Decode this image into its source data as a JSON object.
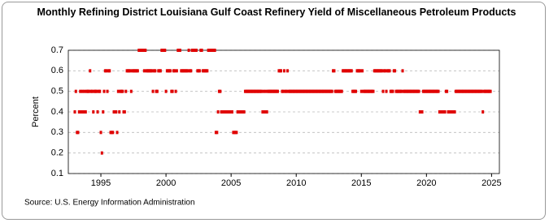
{
  "chart_data": {
    "type": "scatter",
    "title": "Monthly Refining District Louisiana Gulf Coast Refinery Yield of Miscellaneous Petroleum Products",
    "y_label": "Percent",
    "source": "Source: U.S. Energy Information Administration",
    "xlim": [
      1992.5,
      2025.6
    ],
    "xticks": [
      1995,
      2000,
      2005,
      2010,
      2015,
      2020,
      2025
    ],
    "ylim": [
      0.1,
      0.7
    ],
    "yticks": [
      0.1,
      0.2,
      0.3,
      0.4,
      0.5,
      0.6,
      0.7
    ],
    "grid": true,
    "color": "#e00000",
    "x": [
      1993,
      1993.08,
      1993.17,
      1993.25,
      1993.33,
      1993.42,
      1993.5,
      1993.58,
      1993.67,
      1993.75,
      1993.83,
      1993.92,
      1994,
      1994.08,
      1994.17,
      1994.25,
      1994.33,
      1994.42,
      1994.5,
      1994.58,
      1994.67,
      1994.75,
      1994.83,
      1994.92,
      1995,
      1995.08,
      1995.17,
      1995.25,
      1995.33,
      1995.42,
      1995.5,
      1995.58,
      1995.67,
      1995.75,
      1995.83,
      1995.92,
      1996,
      1996.08,
      1996.17,
      1996.25,
      1996.33,
      1996.42,
      1996.5,
      1996.58,
      1996.67,
      1996.75,
      1996.83,
      1996.92,
      1997,
      1997.08,
      1997.17,
      1997.25,
      1997.33,
      1997.42,
      1997.5,
      1997.58,
      1997.67,
      1997.75,
      1997.83,
      1997.92,
      1998,
      1998.08,
      1998.17,
      1998.25,
      1998.33,
      1998.42,
      1998.5,
      1998.58,
      1998.67,
      1998.75,
      1998.83,
      1998.92,
      1999,
      1999.08,
      1999.17,
      1999.25,
      1999.33,
      1999.42,
      1999.5,
      1999.58,
      1999.67,
      1999.75,
      1999.83,
      1999.92,
      2000,
      2000.08,
      2000.17,
      2000.25,
      2000.33,
      2000.42,
      2000.5,
      2000.58,
      2000.67,
      2000.75,
      2000.83,
      2000.92,
      2001,
      2001.08,
      2001.17,
      2001.25,
      2001.33,
      2001.42,
      2001.5,
      2001.58,
      2001.67,
      2001.75,
      2001.83,
      2001.92,
      2002,
      2002.08,
      2002.17,
      2002.25,
      2002.33,
      2002.42,
      2002.5,
      2002.58,
      2002.67,
      2002.75,
      2002.83,
      2002.92,
      2003,
      2003.08,
      2003.17,
      2003.25,
      2003.33,
      2003.42,
      2003.5,
      2003.58,
      2003.67,
      2003.75,
      2003.83,
      2003.92,
      2004,
      2004.08,
      2004.17,
      2004.25,
      2004.33,
      2004.42,
      2004.5,
      2004.58,
      2004.67,
      2004.75,
      2004.83,
      2004.92,
      2005,
      2005.08,
      2005.17,
      2005.25,
      2005.33,
      2005.42,
      2005.5,
      2005.58,
      2005.67,
      2005.75,
      2005.83,
      2005.92,
      2006,
      2006.08,
      2006.17,
      2006.25,
      2006.33,
      2006.42,
      2006.5,
      2006.58,
      2006.67,
      2006.75,
      2006.83,
      2006.92,
      2007,
      2007.08,
      2007.17,
      2007.25,
      2007.33,
      2007.42,
      2007.5,
      2007.58,
      2007.67,
      2007.75,
      2007.83,
      2007.92,
      2008,
      2008.08,
      2008.17,
      2008.25,
      2008.33,
      2008.42,
      2008.5,
      2008.58,
      2008.67,
      2008.75,
      2008.83,
      2008.92,
      2009,
      2009.08,
      2009.17,
      2009.25,
      2009.33,
      2009.42,
      2009.5,
      2009.58,
      2009.67,
      2009.75,
      2009.83,
      2009.92,
      2010,
      2010.08,
      2010.17,
      2010.25,
      2010.33,
      2010.42,
      2010.5,
      2010.58,
      2010.67,
      2010.75,
      2010.83,
      2010.92,
      2011,
      2011.08,
      2011.17,
      2011.25,
      2011.33,
      2011.42,
      2011.5,
      2011.58,
      2011.67,
      2011.75,
      2011.83,
      2011.92,
      2012,
      2012.08,
      2012.17,
      2012.25,
      2012.33,
      2012.42,
      2012.5,
      2012.58,
      2012.67,
      2012.75,
      2012.83,
      2012.92,
      2013,
      2013.08,
      2013.17,
      2013.25,
      2013.33,
      2013.42,
      2013.5,
      2013.58,
      2013.67,
      2013.75,
      2013.83,
      2013.92,
      2014,
      2014.08,
      2014.17,
      2014.25,
      2014.33,
      2014.42,
      2014.5,
      2014.58,
      2014.67,
      2014.75,
      2014.83,
      2014.92,
      2015,
      2015.08,
      2015.17,
      2015.25,
      2015.33,
      2015.42,
      2015.5,
      2015.58,
      2015.67,
      2015.75,
      2015.83,
      2015.92,
      2016,
      2016.08,
      2016.17,
      2016.25,
      2016.33,
      2016.42,
      2016.5,
      2016.58,
      2016.67,
      2016.75,
      2016.83,
      2016.92,
      2017,
      2017.08,
      2017.17,
      2017.25,
      2017.33,
      2017.42,
      2017.5,
      2017.58,
      2017.67,
      2017.75,
      2017.83,
      2017.92,
      2018,
      2018.08,
      2018.17,
      2018.25,
      2018.33,
      2018.42,
      2018.5,
      2018.58,
      2018.67,
      2018.75,
      2018.83,
      2018.92,
      2019,
      2019.08,
      2019.17,
      2019.25,
      2019.33,
      2019.42,
      2019.5,
      2019.58,
      2019.67,
      2019.75,
      2019.83,
      2019.92,
      2020,
      2020.08,
      2020.17,
      2020.25,
      2020.33,
      2020.42,
      2020.5,
      2020.58,
      2020.67,
      2020.75,
      2020.83,
      2020.92,
      2021,
      2021.08,
      2021.17,
      2021.25,
      2021.33,
      2021.42,
      2021.5,
      2021.58,
      2021.67,
      2021.75,
      2021.83,
      2021.92,
      2022,
      2022.08,
      2022.17,
      2022.25,
      2022.33,
      2022.42,
      2022.5,
      2022.58,
      2022.67,
      2022.75,
      2022.83,
      2022.92,
      2023,
      2023.08,
      2023.17,
      2023.25,
      2023.33,
      2023.42,
      2023.5,
      2023.58,
      2023.67,
      2023.75,
      2023.83,
      2023.92,
      2024,
      2024.08,
      2024.17,
      2024.25,
      2024.33,
      2024.42,
      2024.5,
      2024.58,
      2024.67,
      2024.75,
      2024.83,
      2024.92
    ],
    "values": [
      0.4,
      0.5,
      0.3,
      0.3,
      0.4,
      0.5,
      0.4,
      0.5,
      0.4,
      0.5,
      0.4,
      0.5,
      0.5,
      0.5,
      0.6,
      0.5,
      0.5,
      0.4,
      0.5,
      0.5,
      0.5,
      0.4,
      0.5,
      0.5,
      0.3,
      0.2,
      0.4,
      0.5,
      0.6,
      0.6,
      0.5,
      0.6,
      0.6,
      0.3,
      0.3,
      0.3,
      0.4,
      0.4,
      0.4,
      0.3,
      0.5,
      0.4,
      0.5,
      0.5,
      0.5,
      0.4,
      0.4,
      0.5,
      0.6,
      0.6,
      0.6,
      0.6,
      0.5,
      0.6,
      0.6,
      0.6,
      0.6,
      0.6,
      0.6,
      0.7,
      0.7,
      0.7,
      0.7,
      0.7,
      0.6,
      0.7,
      0.6,
      0.6,
      0.6,
      0.6,
      0.6,
      0.6,
      0.5,
      0.6,
      0.6,
      0.5,
      0.5,
      0.6,
      0.6,
      0.6,
      0.7,
      0.7,
      0.7,
      0.7,
      0.5,
      0.6,
      0.6,
      0.6,
      0.6,
      0.5,
      0.5,
      0.6,
      0.6,
      0.5,
      0.6,
      0.7,
      0.7,
      0.7,
      0.6,
      0.6,
      0.6,
      0.6,
      0.6,
      0.6,
      0.6,
      0.7,
      0.6,
      0.6,
      0.7,
      0.7,
      0.7,
      0.7,
      0.7,
      0.6,
      0.6,
      0.6,
      0.7,
      0.7,
      0.6,
      0.6,
      0.6,
      0.6,
      0.6,
      0.7,
      0.7,
      0.7,
      0.7,
      0.7,
      0.7,
      0.7,
      0.3,
      0.3,
      0.4,
      0.5,
      0.5,
      0.4,
      0.4,
      0.4,
      0.4,
      0.4,
      0.4,
      0.4,
      0.4,
      0.4,
      0.4,
      0.4,
      0.3,
      0.3,
      0.3,
      0.3,
      0.4,
      0.4,
      0.4,
      0.4,
      0.4,
      0.4,
      0.4,
      0.5,
      0.5,
      0.5,
      0.5,
      0.5,
      0.5,
      0.5,
      0.5,
      0.5,
      0.5,
      0.5,
      0.5,
      0.5,
      0.5,
      0.5,
      0.5,
      0.4,
      0.5,
      0.4,
      0.5,
      0.4,
      0.5,
      0.5,
      0.5,
      0.5,
      0.5,
      0.5,
      0.5,
      0.5,
      0.5,
      0.5,
      0.6,
      0.6,
      0.6,
      0.5,
      0.5,
      0.6,
      0.5,
      0.5,
      0.6,
      0.5,
      0.5,
      0.5,
      0.5,
      0.5,
      0.5,
      0.5,
      0.5,
      0.5,
      0.5,
      0.5,
      0.5,
      0.5,
      0.5,
      0.5,
      0.5,
      0.5,
      0.5,
      0.5,
      0.5,
      0.5,
      0.5,
      0.5,
      0.5,
      0.5,
      0.5,
      0.5,
      0.5,
      0.5,
      0.5,
      0.5,
      0.5,
      0.5,
      0.5,
      0.5,
      0.5,
      0.5,
      0.5,
      0.5,
      0.5,
      0.5,
      0.6,
      0.6,
      0.5,
      0.5,
      0.5,
      0.5,
      0.5,
      0.5,
      0.5,
      0.6,
      0.6,
      0.6,
      0.6,
      0.6,
      0.6,
      0.6,
      0.6,
      0.6,
      0.5,
      0.5,
      0.5,
      0.5,
      0.6,
      0.6,
      0.6,
      0.6,
      0.5,
      0.6,
      0.5,
      0.5,
      0.5,
      0.5,
      0.5,
      0.5,
      0.5,
      0.5,
      0.5,
      0.5,
      0.6,
      0.6,
      0.6,
      0.6,
      0.6,
      0.6,
      0.6,
      0.6,
      0.5,
      0.6,
      0.6,
      0.5,
      0.6,
      0.6,
      0.6,
      0.5,
      0.5,
      0.5,
      0.6,
      0.6,
      0.5,
      0.5,
      0.5,
      0.5,
      0.5,
      0.5,
      0.6,
      0.5,
      0.5,
      0.5,
      0.5,
      0.5,
      0.5,
      0.5,
      0.5,
      0.5,
      0.5,
      0.5,
      0.5,
      0.5,
      0.5,
      0.5,
      0.4,
      0.4,
      0.4,
      0.5,
      0.5,
      0.5,
      0.5,
      0.5,
      0.5,
      0.5,
      0.5,
      0.5,
      0.5,
      0.5,
      0.5,
      0.5,
      0.5,
      0.5,
      0.4,
      0.4,
      0.4,
      0.4,
      0.4,
      0.4,
      0.5,
      0.5,
      0.4,
      0.4,
      0.4,
      0.4,
      0.4,
      0.4,
      0.4,
      0.5,
      0.5,
      0.5,
      0.5,
      0.5,
      0.5,
      0.5,
      0.5,
      0.5,
      0.5,
      0.5,
      0.5,
      0.5,
      0.5,
      0.5,
      0.5,
      0.5,
      0.5,
      0.5,
      0.5,
      0.5,
      0.5,
      0.5,
      0.5,
      0.5,
      0.4,
      0.5,
      0.5,
      0.5,
      0.5,
      0.5,
      0.5,
      0.5
    ]
  }
}
